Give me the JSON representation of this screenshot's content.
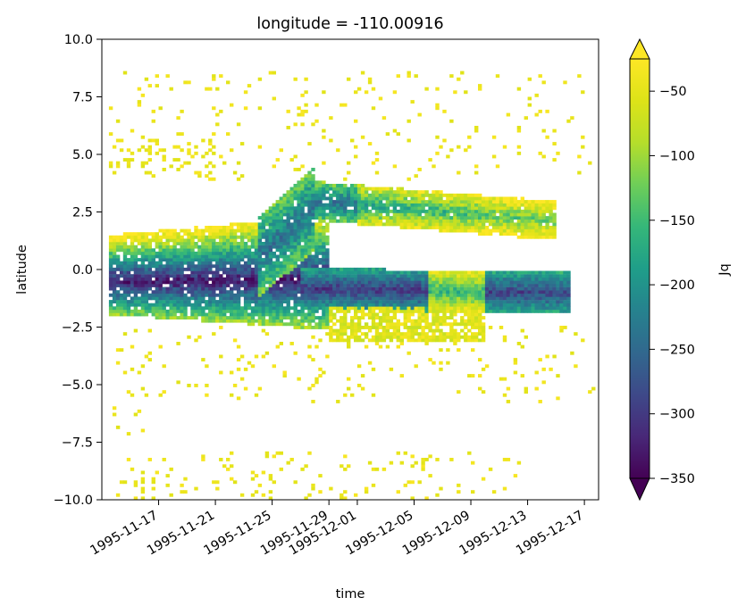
{
  "chart_data": {
    "type": "heatmap",
    "title": "longitude = -110.00916",
    "xlabel": "time",
    "ylabel": "latitude",
    "colorbar_label": "Jq",
    "colormap": "viridis",
    "extend": "both",
    "x_range": [
      "1995-11-13",
      "1995-12-18"
    ],
    "ylim": [
      -10.0,
      10.0
    ],
    "clim": [
      -350,
      -25
    ],
    "x_ticks": [
      "1995-11-17",
      "1995-11-21",
      "1995-11-25",
      "1995-11-29",
      "1995-12-01",
      "1995-12-05",
      "1995-12-09",
      "1995-12-13",
      "1995-12-17"
    ],
    "y_ticks": [
      "10.0",
      "7.5",
      "5.0",
      "2.5",
      "0.0",
      "−2.5",
      "−5.0",
      "−7.5",
      "−10.0"
    ],
    "y_tick_values": [
      10.0,
      7.5,
      5.0,
      2.5,
      0.0,
      -2.5,
      -5.0,
      -7.5,
      -10.0
    ],
    "colorbar_ticks": [
      "−50",
      "−100",
      "−150",
      "−200",
      "−250",
      "−300",
      "−350"
    ],
    "colorbar_tick_values": [
      -50,
      -100,
      -150,
      -200,
      -250,
      -300,
      -350
    ],
    "features": [
      {
        "desc": "equatorial undercurrent core",
        "t0": "1995-11-14",
        "t1": "1995-11-27",
        "lat0": -1.2,
        "lat1": 0.3,
        "jq": -300
      },
      {
        "desc": "equatorial band flank",
        "t0": "1995-11-14",
        "t1": "1995-11-27",
        "lat0": -2.5,
        "lat1": 1.5,
        "jq": -150
      },
      {
        "desc": "northward excursion",
        "t0": "1995-11-24",
        "t1": "1995-12-15",
        "lat0": 2.0,
        "lat1": 3.8,
        "jq": -220
      },
      {
        "desc": "southern branch core",
        "t0": "1995-11-29",
        "t1": "1995-12-16",
        "lat0": -1.5,
        "lat1": -0.3,
        "jq": -270
      },
      {
        "desc": "weak southern flank",
        "t0": "1995-11-30",
        "t1": "1995-12-10",
        "lat0": -3.0,
        "lat1": -1.5,
        "jq": -60
      },
      {
        "desc": "scattered weak flux",
        "lat_bands": [
          [
            4,
            8.5
          ],
          [
            -5.5,
            -3
          ],
          [
            -10,
            -8
          ]
        ],
        "jq": -35
      }
    ]
  }
}
